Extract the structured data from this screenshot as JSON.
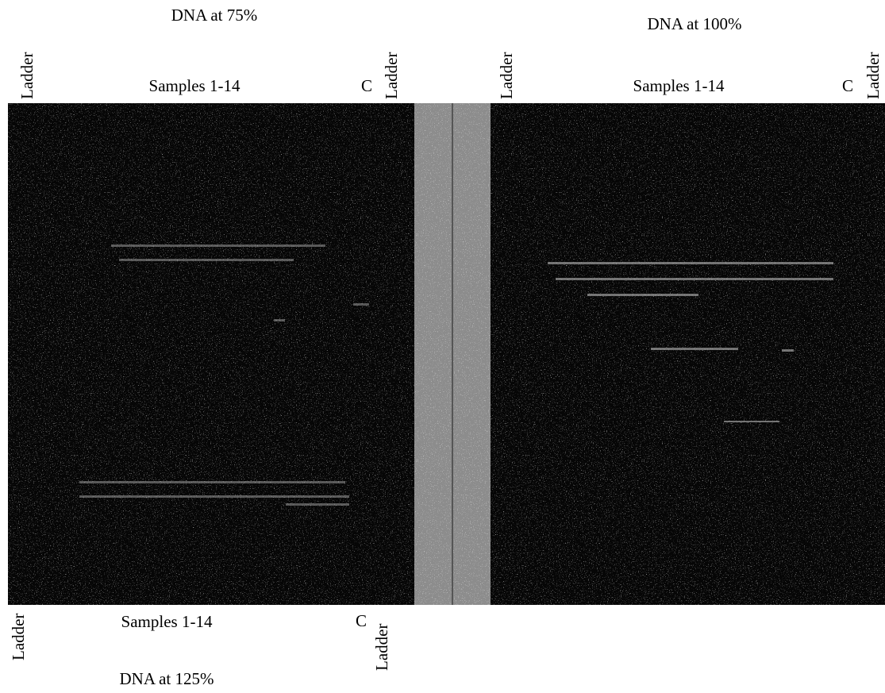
{
  "top_left": {
    "title": "DNA at 75%",
    "labels": [
      "Ladder",
      "Samples 1-14",
      "C",
      "Ladder"
    ]
  },
  "top_right": {
    "title": "DNA at 100%",
    "labels": [
      "Ladder",
      "Samples 1-14",
      "C",
      "Ladder"
    ]
  },
  "bottom_left": {
    "title": "DNA at 125%",
    "labels": [
      "Ladder",
      "Samples 1-14",
      "C",
      "Ladder"
    ]
  }
}
